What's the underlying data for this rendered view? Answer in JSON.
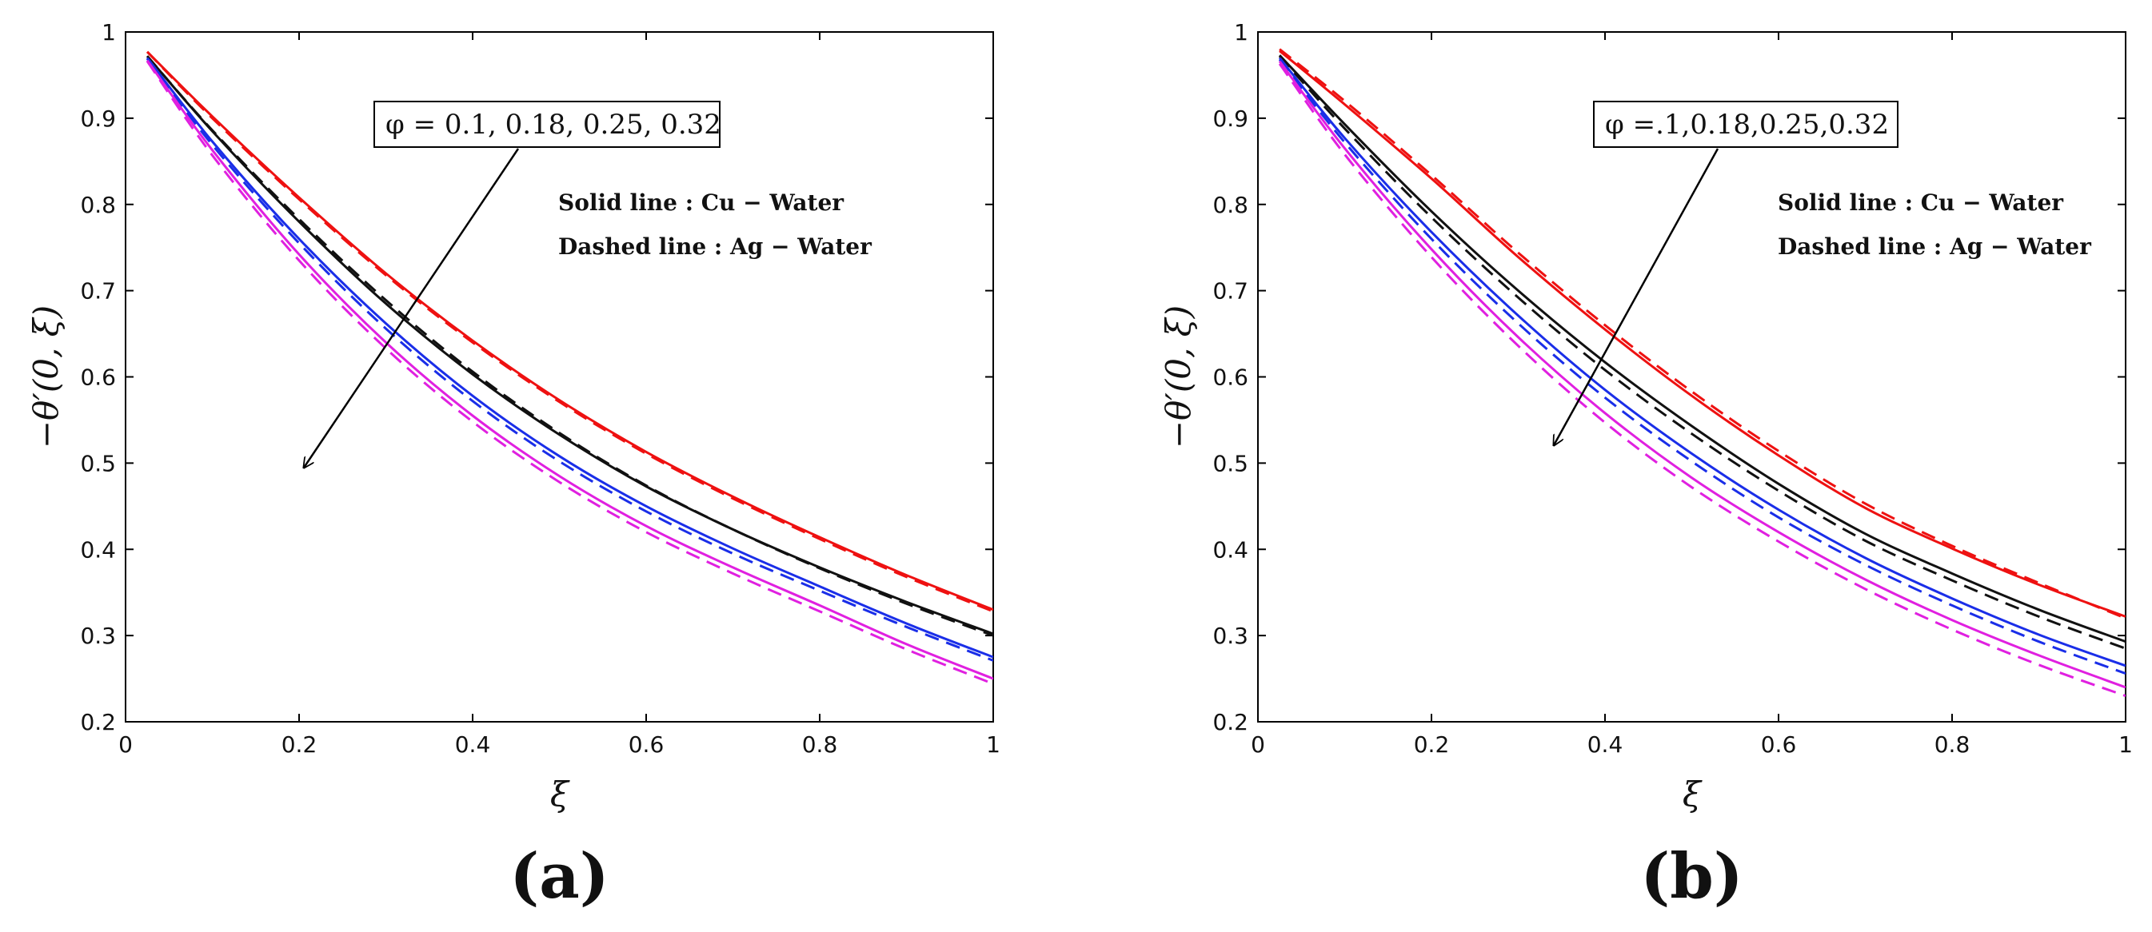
{
  "chart_data": [
    {
      "type": "line",
      "panel_label": "(a)",
      "xlabel": "ξ",
      "ylabel": "−θ′(0, ξ)",
      "xlim": [
        0,
        1
      ],
      "ylim": [
        0.2,
        1
      ],
      "xticks": [
        "0",
        "0.2",
        "0.4",
        "0.6",
        "0.8",
        "1"
      ],
      "yticks": [
        "0.2",
        "0.3",
        "0.4",
        "0.5",
        "0.6",
        "0.7",
        "0.8",
        "0.9",
        "1"
      ],
      "grid": false,
      "annotation": "φ = 0.1, 0.18, 0.25, 0.32",
      "legend_solid": "Solid line : Cu − Water",
      "legend_dashed": "Dashed line : Ag − Water",
      "x": [
        0.025,
        0.1,
        0.2,
        0.3,
        0.4,
        0.5,
        0.6,
        0.7,
        0.8,
        0.9,
        1.0
      ],
      "series": [
        {
          "color": "#ee1111",
          "dash": false,
          "values": [
            0.977,
            0.902,
            0.808,
            0.72,
            0.642,
            0.573,
            0.513,
            0.461,
            0.414,
            0.37,
            0.33
          ]
        },
        {
          "color": "#ee1111",
          "dash": true,
          "values": [
            0.977,
            0.9,
            0.806,
            0.718,
            0.64,
            0.571,
            0.511,
            0.459,
            0.412,
            0.368,
            0.328
          ]
        },
        {
          "color": "#111111",
          "dash": false,
          "values": [
            0.972,
            0.885,
            0.78,
            0.685,
            0.603,
            0.533,
            0.473,
            0.423,
            0.379,
            0.339,
            0.302
          ]
        },
        {
          "color": "#111111",
          "dash": true,
          "values": [
            0.972,
            0.886,
            0.783,
            0.689,
            0.606,
            0.535,
            0.474,
            0.423,
            0.378,
            0.337,
            0.3
          ]
        },
        {
          "color": "#1a2ee8",
          "dash": false,
          "values": [
            0.97,
            0.873,
            0.76,
            0.662,
            0.578,
            0.508,
            0.45,
            0.401,
            0.357,
            0.314,
            0.275
          ]
        },
        {
          "color": "#1a2ee8",
          "dash": true,
          "values": [
            0.969,
            0.869,
            0.755,
            0.656,
            0.572,
            0.502,
            0.444,
            0.395,
            0.352,
            0.31,
            0.271
          ]
        },
        {
          "color": "#e020e0",
          "dash": false,
          "values": [
            0.967,
            0.863,
            0.742,
            0.64,
            0.555,
            0.485,
            0.427,
            0.379,
            0.335,
            0.29,
            0.25
          ]
        },
        {
          "color": "#e020e0",
          "dash": true,
          "values": [
            0.966,
            0.857,
            0.735,
            0.633,
            0.548,
            0.478,
            0.42,
            0.372,
            0.328,
            0.284,
            0.244
          ]
        }
      ]
    },
    {
      "type": "line",
      "panel_label": "(b)",
      "xlabel": "ξ",
      "ylabel": "−θ′(0, ξ)",
      "xlim": [
        0,
        1
      ],
      "ylim": [
        0.2,
        1
      ],
      "xticks": [
        "0",
        "0.2",
        "0.4",
        "0.6",
        "0.8",
        "1"
      ],
      "yticks": [
        "0.2",
        "0.3",
        "0.4",
        "0.5",
        "0.6",
        "0.7",
        "0.8",
        "0.9",
        "1"
      ],
      "grid": false,
      "annotation": "φ   =.1,0.18,0.25,0.32",
      "legend_solid": "Solid line : Cu − Water",
      "legend_dashed": "Dashed line : Ag − Water",
      "x": [
        0.025,
        0.1,
        0.2,
        0.3,
        0.4,
        0.5,
        0.6,
        0.7,
        0.8,
        0.9,
        1.0
      ],
      "series": [
        {
          "color": "#ee1111",
          "dash": false,
          "values": [
            0.978,
            0.916,
            0.83,
            0.739,
            0.655,
            0.578,
            0.509,
            0.448,
            0.401,
            0.359,
            0.322
          ]
        },
        {
          "color": "#ee1111",
          "dash": true,
          "values": [
            0.98,
            0.92,
            0.834,
            0.744,
            0.66,
            0.583,
            0.514,
            0.453,
            0.404,
            0.361,
            0.32
          ]
        },
        {
          "color": "#111111",
          "dash": false,
          "values": [
            0.973,
            0.893,
            0.792,
            0.7,
            0.617,
            0.543,
            0.476,
            0.418,
            0.372,
            0.33,
            0.293
          ]
        },
        {
          "color": "#111111",
          "dash": true,
          "values": [
            0.972,
            0.888,
            0.785,
            0.692,
            0.608,
            0.534,
            0.468,
            0.41,
            0.364,
            0.322,
            0.285
          ]
        },
        {
          "color": "#1a2ee8",
          "dash": false,
          "values": [
            0.97,
            0.877,
            0.768,
            0.671,
            0.585,
            0.511,
            0.446,
            0.39,
            0.343,
            0.301,
            0.265
          ]
        },
        {
          "color": "#1a2ee8",
          "dash": true,
          "values": [
            0.968,
            0.872,
            0.76,
            0.662,
            0.576,
            0.502,
            0.437,
            0.382,
            0.335,
            0.293,
            0.256
          ]
        },
        {
          "color": "#e020e0",
          "dash": false,
          "values": [
            0.966,
            0.865,
            0.748,
            0.646,
            0.558,
            0.483,
            0.42,
            0.365,
            0.318,
            0.277,
            0.24
          ]
        },
        {
          "color": "#e020e0",
          "dash": true,
          "values": [
            0.963,
            0.858,
            0.739,
            0.636,
            0.547,
            0.472,
            0.409,
            0.354,
            0.307,
            0.266,
            0.23
          ]
        }
      ]
    }
  ]
}
